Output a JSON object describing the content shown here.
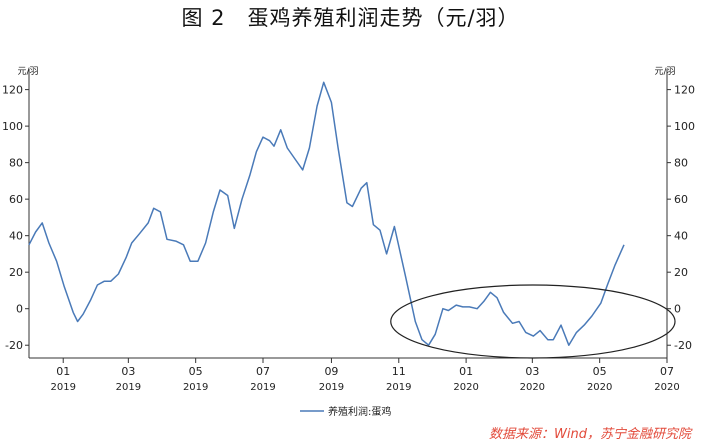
{
  "title": "图 2　蛋鸡养殖利润走势（元/羽）",
  "source": "数据来源：Wind，苏宁金融研究院",
  "colors": {
    "line": "#4a7ab8",
    "axis": "#333333",
    "ellipse": "#222222",
    "source": "#e24a3a"
  },
  "chart_data": {
    "type": "line",
    "title": "图 2　蛋鸡养殖利润走势（元/羽）",
    "y_unit_left": "元/羽",
    "y_unit_right": "元/羽",
    "ylim": [
      -27,
      128
    ],
    "yticks": [
      -20,
      0,
      20,
      40,
      60,
      80,
      100,
      120
    ],
    "xlim": [
      "2018-12-01",
      "2020-07-01"
    ],
    "xticks": [
      {
        "date": "2019-01-01",
        "month": "01",
        "year": "2019"
      },
      {
        "date": "2019-03-01",
        "month": "03",
        "year": "2019"
      },
      {
        "date": "2019-05-01",
        "month": "05",
        "year": "2019"
      },
      {
        "date": "2019-07-01",
        "month": "07",
        "year": "2019"
      },
      {
        "date": "2019-09-01",
        "month": "09",
        "year": "2019"
      },
      {
        "date": "2019-11-01",
        "month": "11",
        "year": "2019"
      },
      {
        "date": "2020-01-01",
        "month": "01",
        "year": "2020"
      },
      {
        "date": "2020-03-01",
        "month": "03",
        "year": "2020"
      },
      {
        "date": "2020-05-01",
        "month": "05",
        "year": "2020"
      },
      {
        "date": "2020-07-01",
        "month": "07",
        "year": "2020"
      }
    ],
    "grid": false,
    "legend_position": "bottom",
    "series": [
      {
        "name": "养殖利润:蛋鸡",
        "points": [
          [
            "2018-12-01",
            35
          ],
          [
            "2018-12-07",
            42
          ],
          [
            "2018-12-13",
            47
          ],
          [
            "2018-12-19",
            36
          ],
          [
            "2018-12-26",
            26
          ],
          [
            "2019-01-02",
            12
          ],
          [
            "2019-01-10",
            -2
          ],
          [
            "2019-01-14",
            -7
          ],
          [
            "2019-01-19",
            -3
          ],
          [
            "2019-01-26",
            5
          ],
          [
            "2019-02-01",
            13
          ],
          [
            "2019-02-07",
            15
          ],
          [
            "2019-02-13",
            15
          ],
          [
            "2019-02-20",
            19
          ],
          [
            "2019-02-27",
            28
          ],
          [
            "2019-03-04",
            36
          ],
          [
            "2019-03-11",
            41
          ],
          [
            "2019-03-19",
            47
          ],
          [
            "2019-03-24",
            55
          ],
          [
            "2019-03-30",
            53
          ],
          [
            "2019-04-05",
            38
          ],
          [
            "2019-04-13",
            37
          ],
          [
            "2019-04-20",
            35
          ],
          [
            "2019-04-26",
            26
          ],
          [
            "2019-05-03",
            26
          ],
          [
            "2019-05-10",
            36
          ],
          [
            "2019-05-17",
            53
          ],
          [
            "2019-05-23",
            65
          ],
          [
            "2019-05-30",
            62
          ],
          [
            "2019-06-05",
            44
          ],
          [
            "2019-06-12",
            60
          ],
          [
            "2019-06-19",
            73
          ],
          [
            "2019-06-25",
            86
          ],
          [
            "2019-07-01",
            94
          ],
          [
            "2019-07-07",
            92
          ],
          [
            "2019-07-11",
            89
          ],
          [
            "2019-07-17",
            98
          ],
          [
            "2019-07-23",
            88
          ],
          [
            "2019-07-30",
            82
          ],
          [
            "2019-08-06",
            76
          ],
          [
            "2019-08-12",
            88
          ],
          [
            "2019-08-19",
            111
          ],
          [
            "2019-08-25",
            124
          ],
          [
            "2019-09-01",
            113
          ],
          [
            "2019-09-07",
            88
          ],
          [
            "2019-09-15",
            58
          ],
          [
            "2019-09-20",
            56
          ],
          [
            "2019-09-28",
            66
          ],
          [
            "2019-10-03",
            69
          ],
          [
            "2019-10-09",
            46
          ],
          [
            "2019-10-15",
            43
          ],
          [
            "2019-10-21",
            30
          ],
          [
            "2019-10-28",
            45
          ],
          [
            "2019-11-07",
            18
          ],
          [
            "2019-11-16",
            -7
          ],
          [
            "2019-11-22",
            -17
          ],
          [
            "2019-11-28",
            -20
          ],
          [
            "2019-12-04",
            -14
          ],
          [
            "2019-12-11",
            0
          ],
          [
            "2019-12-16",
            -1
          ],
          [
            "2019-12-23",
            2
          ],
          [
            "2019-12-29",
            1
          ],
          [
            "2020-01-04",
            1
          ],
          [
            "2020-01-11",
            0
          ],
          [
            "2020-01-17",
            4
          ],
          [
            "2020-01-23",
            9
          ],
          [
            "2020-01-29",
            6
          ],
          [
            "2020-02-04",
            -2
          ],
          [
            "2020-02-12",
            -8
          ],
          [
            "2020-02-18",
            -7
          ],
          [
            "2020-02-24",
            -13
          ],
          [
            "2020-03-02",
            -15
          ],
          [
            "2020-03-08",
            -12
          ],
          [
            "2020-03-15",
            -17
          ],
          [
            "2020-03-20",
            -17
          ],
          [
            "2020-03-27",
            -9
          ],
          [
            "2020-04-03",
            -20
          ],
          [
            "2020-04-10",
            -13
          ],
          [
            "2020-04-17",
            -9
          ],
          [
            "2020-04-24",
            -4
          ],
          [
            "2020-05-02",
            3
          ],
          [
            "2020-05-08",
            13
          ],
          [
            "2020-05-15",
            24
          ],
          [
            "2020-05-23",
            35
          ]
        ]
      }
    ]
  }
}
